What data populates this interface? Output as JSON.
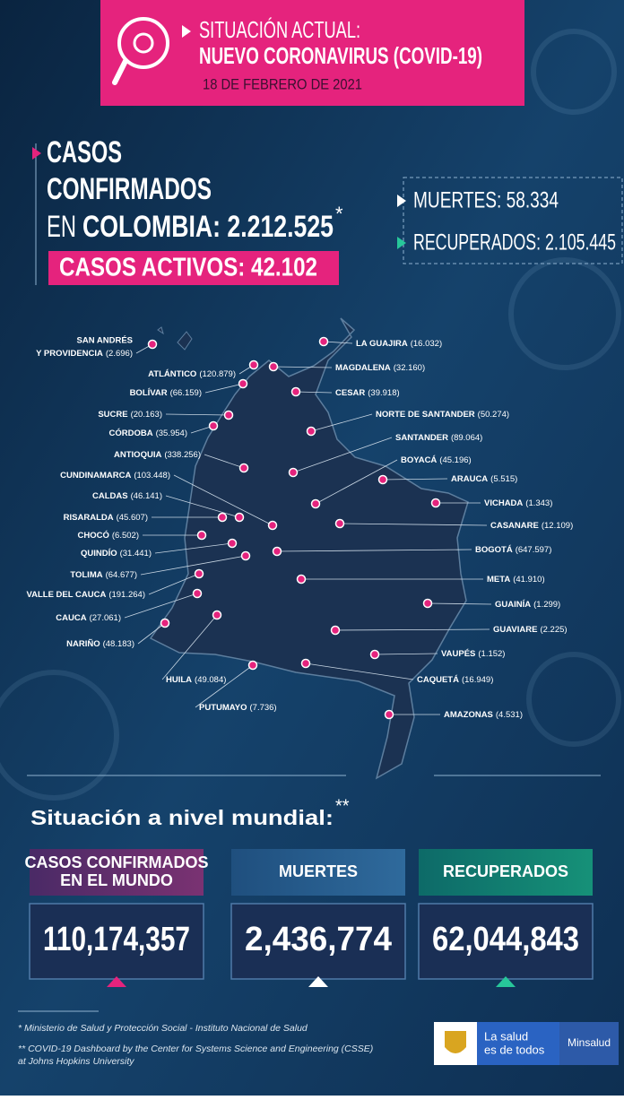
{
  "header": {
    "title1": "SITUACIÓN ACTUAL:",
    "title2": "NUEVO CORONAVIRUS (COVID-19)",
    "date": "18 DE FEBRERO DE 2021"
  },
  "colombia": {
    "line1": "CASOS",
    "line2": "CONFIRMADOS",
    "line3a": "EN",
    "line3b": "COLOMBIA: 2.212.525",
    "asterisk": "*",
    "active": "CASOS ACTIVOS: 42.102",
    "deaths": "MUERTES: 58.334",
    "recovered": "RECUPERADOS: 2.105.445"
  },
  "departments": [
    {
      "name_top": "SAN ANDRÉS",
      "name": "Y PROVIDENCIA",
      "count": "(2.696)"
    },
    {
      "name": "ATLÁNTICO",
      "count": "(120.879)"
    },
    {
      "name": "BOLÍVAR",
      "count": "(66.159)"
    },
    {
      "name": "SUCRE",
      "count": "(20.163)"
    },
    {
      "name": "CÓRDOBA",
      "count": "(35.954)"
    },
    {
      "name": "ANTIOQUIA",
      "count": "(338.256)"
    },
    {
      "name": "CUNDINAMARCA",
      "count": "(103.448)"
    },
    {
      "name": "CALDAS",
      "count": "(46.141)"
    },
    {
      "name": "RISARALDA",
      "count": "(45.607)"
    },
    {
      "name": "CHOCÓ",
      "count": "(6.502)"
    },
    {
      "name": "QUINDÍO",
      "count": "(31.441)"
    },
    {
      "name": "TOLIMA",
      "count": "(64.677)"
    },
    {
      "name": "VALLE DEL CAUCA",
      "count": "(191.264)"
    },
    {
      "name": "CAUCA",
      "count": "(27.061)"
    },
    {
      "name": "NARIÑO",
      "count": "(48.183)"
    },
    {
      "name": "LA GUAJIRA",
      "count": "(16.032)"
    },
    {
      "name": "MAGDALENA",
      "count": "(32.160)"
    },
    {
      "name": "CESAR",
      "count": "(39.918)"
    },
    {
      "name": "NORTE DE SANTANDER",
      "count": "(50.274)"
    },
    {
      "name": "SANTANDER",
      "count": "(89.064)"
    },
    {
      "name": "BOYACÁ",
      "count": "(45.196)"
    },
    {
      "name": "ARAUCA",
      "count": "(5.515)"
    },
    {
      "name": "VICHADA",
      "count": "(1.343)"
    },
    {
      "name": "CASANARE",
      "count": "(12.109)"
    },
    {
      "name": "BOGOTÁ",
      "count": "(647.597)"
    },
    {
      "name": "META",
      "count": "(41.910)"
    },
    {
      "name": "GUAINÍA",
      "count": "(1.299)"
    },
    {
      "name": "GUAVIARE",
      "count": "(2.225)"
    },
    {
      "name": "VAUPÉS",
      "count": "(1.152)"
    },
    {
      "name": "CAQUETÁ",
      "count": "(16.949)"
    },
    {
      "name": "AMAZONAS",
      "count": "(4.531)"
    },
    {
      "name": "HUILA",
      "count": "(49.084)"
    },
    {
      "name": "PUTUMAYO",
      "count": "(7.736)"
    }
  ],
  "world": {
    "title": "Situación a nivel mundial:",
    "asterisk": "**",
    "cards": [
      {
        "label": [
          "CASOS CONFIRMADOS",
          "EN EL MUNDO"
        ],
        "value": "110,174,357"
      },
      {
        "label": [
          "MUERTES"
        ],
        "value": "2,436,774"
      },
      {
        "label": [
          "RECUPERADOS"
        ],
        "value": "62,044,843"
      }
    ]
  },
  "footnotes": [
    "* Ministerio de Salud y Protección Social - Instituto Nacional de Salud",
    "** COVID-19 Dashboard by the Center for Systems Science and Engineering (CSSE)",
    "at Johns Hopkins University"
  ],
  "logo": {
    "slogan1": "La salud",
    "slogan2": "es de todos",
    "brand": "Minsalud"
  }
}
